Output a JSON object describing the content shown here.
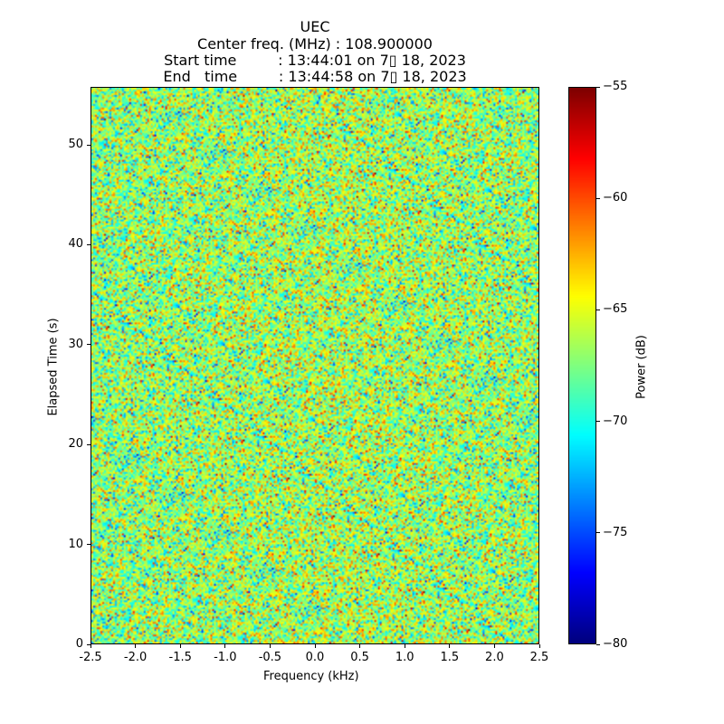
{
  "chart_data": {
    "type": "heatmap",
    "title_lines": [
      "UEC",
      "Center freq. (MHz) : 108.900000",
      "Start time         : 13:44:01 on 7▯ 18, 2023",
      "End   time         : 13:44:58 on 7▯ 18, 2023"
    ],
    "xlabel": "Frequency (kHz)",
    "ylabel": "Elapsed Time (s)",
    "xlim": [
      -2.5,
      2.5
    ],
    "ylim": [
      0,
      55.8
    ],
    "xticks": [
      "-2.5",
      "-2.0",
      "-1.5",
      "-1.0",
      "-0.5",
      "0.0",
      "0.5",
      "1.0",
      "1.5",
      "2.0",
      "2.5"
    ],
    "yticks": [
      "0",
      "10",
      "20",
      "30",
      "40",
      "50"
    ],
    "colorbar": {
      "label": "Power (dB)",
      "range": [
        -80,
        -55
      ],
      "colormap": "jet",
      "ticks": [
        "−80",
        "−75",
        "−70",
        "−65",
        "−60",
        "−55"
      ]
    },
    "values_description": "noise-like power, mean about -67 dB, slightly higher near center frequency",
    "mean_db": -67,
    "std_db": 3.2
  }
}
